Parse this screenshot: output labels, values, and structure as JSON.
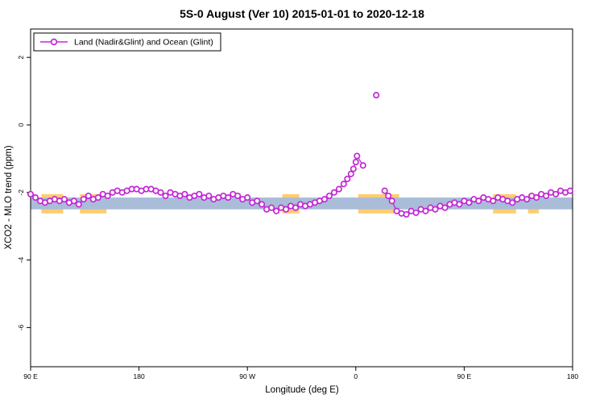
{
  "chart_data": {
    "type": "line",
    "title": "5S-0 August (Ver 10)   2015-01-01 to 2020-12-18",
    "xlabel": "Longitude (deg E)",
    "ylabel": "XCO2 - MLO trend (ppm)",
    "legend": {
      "label": "Land (Nadir&Glint) and Ocean (Glint)",
      "position": "top-left"
    },
    "xlim": [
      90,
      540
    ],
    "ylim": [
      -7.16,
      2.84
    ],
    "xticks": [
      {
        "value": 90,
        "label": "90 E"
      },
      {
        "value": 180,
        "label": "180"
      },
      {
        "value": 270,
        "label": "90 W"
      },
      {
        "value": 360,
        "label": "0"
      },
      {
        "value": 450,
        "label": "90 E"
      },
      {
        "value": 540,
        "label": "180"
      }
    ],
    "yticks": [
      {
        "value": 2,
        "label": "2"
      },
      {
        "value": 0,
        "label": "0"
      },
      {
        "value": -2,
        "label": "-2"
      },
      {
        "value": -4,
        "label": "-4"
      },
      {
        "value": -6,
        "label": "-6"
      }
    ],
    "grid": false,
    "colors": {
      "line": "#c228d4",
      "marker_fill": "#ffffff",
      "band_blue": "#a9bdd8",
      "band_orange": "#ffcc70",
      "box": "#000000"
    },
    "bands": {
      "blue": {
        "y_range": [
          -2.5,
          -2.15
        ],
        "x_range": [
          90,
          540
        ]
      },
      "orange": {
        "y_range": [
          -2.62,
          -2.05
        ],
        "x_ranges": [
          [
            99,
            117
          ],
          [
            131,
            153
          ],
          [
            299,
            313
          ],
          [
            362,
            396
          ],
          [
            474,
            493
          ],
          [
            503,
            512
          ]
        ]
      }
    },
    "series": [
      {
        "name": "Land (Nadir&Glint) and Ocean (Glint)",
        "segments": [
          [
            [
              90,
              -2.05
            ],
            [
              94,
              -2.15
            ],
            [
              98,
              -2.25
            ],
            [
              102,
              -2.3
            ],
            [
              106,
              -2.25
            ],
            [
              110,
              -2.2
            ],
            [
              114,
              -2.25
            ],
            [
              118,
              -2.2
            ],
            [
              122,
              -2.3
            ],
            [
              126,
              -2.25
            ],
            [
              130,
              -2.35
            ],
            [
              134,
              -2.2
            ],
            [
              138,
              -2.1
            ],
            [
              142,
              -2.2
            ],
            [
              146,
              -2.15
            ],
            [
              150,
              -2.05
            ],
            [
              154,
              -2.1
            ],
            [
              158,
              -2.0
            ],
            [
              162,
              -1.95
            ],
            [
              166,
              -2.0
            ],
            [
              170,
              -1.95
            ],
            [
              174,
              -1.9
            ],
            [
              178,
              -1.9
            ],
            [
              182,
              -1.95
            ],
            [
              186,
              -1.9
            ],
            [
              190,
              -1.9
            ],
            [
              194,
              -1.95
            ],
            [
              198,
              -2.0
            ],
            [
              202,
              -2.1
            ],
            [
              206,
              -2.0
            ],
            [
              210,
              -2.05
            ],
            [
              214,
              -2.1
            ],
            [
              218,
              -2.05
            ],
            [
              222,
              -2.15
            ],
            [
              226,
              -2.1
            ],
            [
              230,
              -2.05
            ],
            [
              234,
              -2.15
            ],
            [
              238,
              -2.1
            ],
            [
              242,
              -2.2
            ],
            [
              246,
              -2.15
            ],
            [
              250,
              -2.1
            ],
            [
              254,
              -2.15
            ],
            [
              258,
              -2.05
            ],
            [
              262,
              -2.1
            ],
            [
              266,
              -2.2
            ],
            [
              270,
              -2.15
            ],
            [
              274,
              -2.3
            ],
            [
              278,
              -2.25
            ],
            [
              282,
              -2.35
            ],
            [
              286,
              -2.5
            ],
            [
              290,
              -2.45
            ],
            [
              294,
              -2.55
            ],
            [
              298,
              -2.45
            ],
            [
              302,
              -2.5
            ],
            [
              306,
              -2.4
            ],
            [
              310,
              -2.45
            ],
            [
              314,
              -2.35
            ],
            [
              318,
              -2.4
            ],
            [
              322,
              -2.35
            ],
            [
              326,
              -2.3
            ],
            [
              330,
              -2.25
            ],
            [
              334,
              -2.2
            ],
            [
              338,
              -2.1
            ],
            [
              342,
              -2.0
            ],
            [
              346,
              -1.9
            ],
            [
              350,
              -1.75
            ],
            [
              353,
              -1.6
            ],
            [
              356,
              -1.45
            ],
            [
              358,
              -1.3
            ],
            [
              360,
              -1.1
            ],
            [
              361,
              -0.92
            ],
            [
              366,
              -1.2
            ]
          ],
          [
            [
              384,
              -1.95
            ],
            [
              387,
              -2.1
            ],
            [
              390,
              -2.25
            ],
            [
              394,
              -2.55
            ],
            [
              398,
              -2.62
            ],
            [
              402,
              -2.65
            ],
            [
              406,
              -2.55
            ],
            [
              410,
              -2.6
            ],
            [
              414,
              -2.5
            ],
            [
              418,
              -2.55
            ],
            [
              422,
              -2.45
            ],
            [
              426,
              -2.5
            ],
            [
              430,
              -2.4
            ],
            [
              434,
              -2.45
            ],
            [
              438,
              -2.35
            ],
            [
              442,
              -2.3
            ],
            [
              446,
              -2.35
            ],
            [
              450,
              -2.25
            ],
            [
              454,
              -2.3
            ],
            [
              458,
              -2.2
            ],
            [
              462,
              -2.25
            ],
            [
              466,
              -2.15
            ],
            [
              470,
              -2.2
            ],
            [
              474,
              -2.25
            ],
            [
              478,
              -2.15
            ],
            [
              482,
              -2.2
            ],
            [
              486,
              -2.25
            ],
            [
              490,
              -2.3
            ],
            [
              494,
              -2.2
            ],
            [
              498,
              -2.15
            ],
            [
              502,
              -2.2
            ],
            [
              506,
              -2.1
            ],
            [
              510,
              -2.15
            ],
            [
              514,
              -2.05
            ],
            [
              518,
              -2.1
            ],
            [
              522,
              -2.0
            ],
            [
              526,
              -2.05
            ],
            [
              530,
              -1.95
            ],
            [
              534,
              -2.0
            ],
            [
              538,
              -1.95
            ]
          ]
        ],
        "isolated_points": [
          [
            377,
            0.88
          ]
        ]
      }
    ]
  }
}
